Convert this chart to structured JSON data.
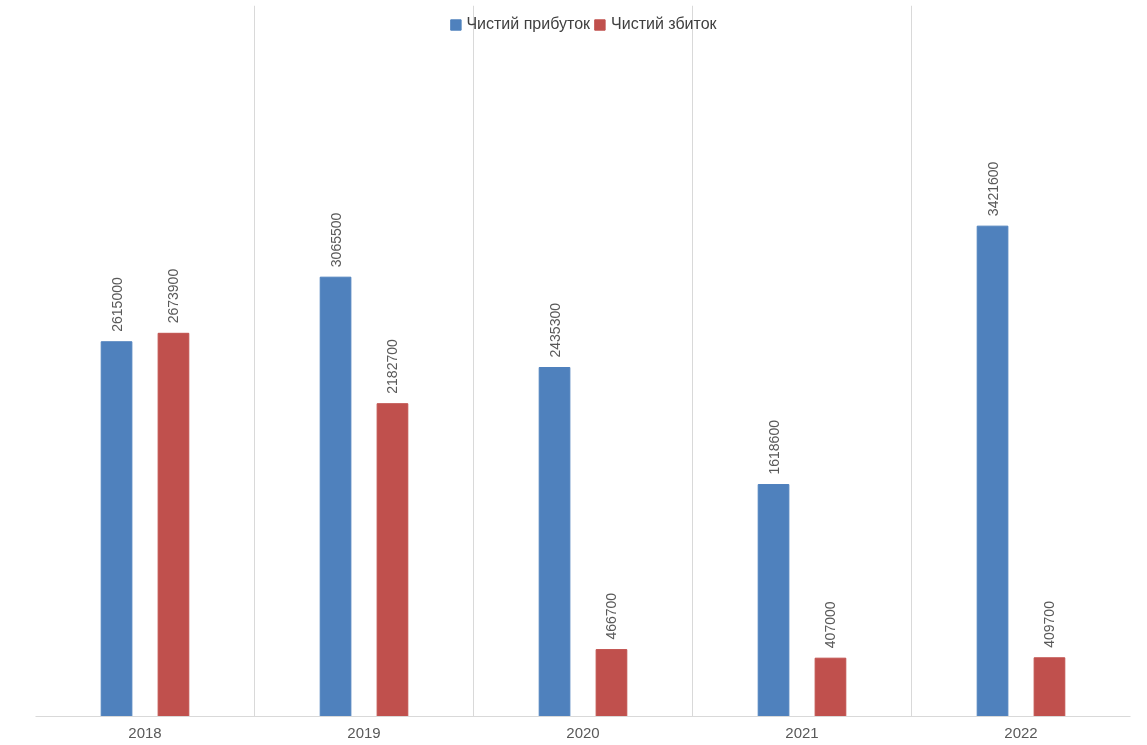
{
  "chart_data": {
    "type": "bar",
    "categories": [
      "2018",
      "2019",
      "2020",
      "2021",
      "2022"
    ],
    "series": [
      {
        "name": "Чистий прибуток",
        "color": "#4f81bd",
        "values": [
          2615000,
          3065500,
          2435300,
          1618600,
          3421600
        ]
      },
      {
        "name": "Чистий збиток",
        "color": "#c0504d",
        "values": [
          2673900,
          2182700,
          466700,
          407000,
          409700
        ]
      }
    ],
    "data_labels": true,
    "grid": "x",
    "legend": "top",
    "tick_labels": "x"
  }
}
